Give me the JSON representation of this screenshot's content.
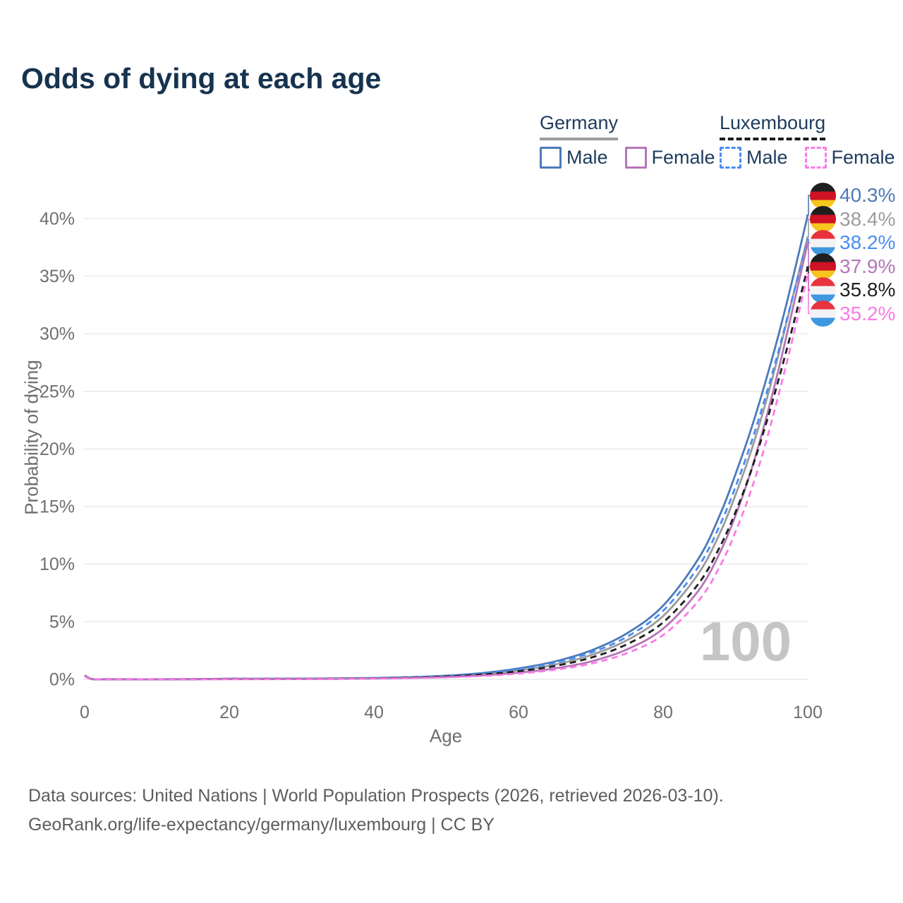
{
  "title": "Odds of dying at each age",
  "watermark": "100",
  "legend": {
    "groups": [
      {
        "name": "Germany",
        "underline_color": "#9c9c9c",
        "underline_dashed": false,
        "items": [
          {
            "label": "Male",
            "series": "germany-male"
          },
          {
            "label": "Female",
            "series": "germany-female"
          }
        ]
      },
      {
        "name": "Luxembourg",
        "underline_color": "#1c1c1c",
        "underline_dashed": true,
        "items": [
          {
            "label": "Male",
            "series": "luxembourg-male"
          },
          {
            "label": "Female",
            "series": "luxembourg-female"
          }
        ]
      }
    ]
  },
  "chart_data": {
    "type": "line",
    "title": "Odds of dying at each age",
    "xlabel": "Age",
    "ylabel": "Probability of dying",
    "xlim": [
      0,
      100
    ],
    "ylim": [
      0,
      40
    ],
    "xticks": [
      0,
      20,
      40,
      60,
      80,
      100
    ],
    "yticks": [
      0,
      5,
      10,
      15,
      20,
      25,
      30,
      35,
      40
    ],
    "ytick_suffix": "%",
    "grid": true,
    "x_ages": [
      0,
      1,
      3,
      5,
      10,
      15,
      20,
      25,
      30,
      35,
      40,
      45,
      50,
      55,
      60,
      65,
      70,
      75,
      80,
      85,
      88,
      90,
      92,
      94,
      96,
      98,
      100
    ],
    "series": [
      {
        "id": "germany-both",
        "name": "Germany (both sexes)",
        "color": "#9c9c9c",
        "dashed": false,
        "flag": "de",
        "end_label": "38.4%",
        "end_value": 38.4,
        "values": [
          0.33,
          0.025,
          0.013,
          0.01,
          0.009,
          0.018,
          0.04,
          0.04,
          0.05,
          0.07,
          0.1,
          0.16,
          0.27,
          0.46,
          0.78,
          1.28,
          2.1,
          3.4,
          5.5,
          9.3,
          12.9,
          16.0,
          19.5,
          23.6,
          28.3,
          33.4,
          38.4
        ]
      },
      {
        "id": "germany-male",
        "name": "Germany Male",
        "color": "#4c7ab8",
        "dashed": false,
        "flag": "de",
        "end_label": "40.3%",
        "end_value": 40.3,
        "values": [
          0.35,
          0.03,
          0.015,
          0.012,
          0.01,
          0.02,
          0.05,
          0.05,
          0.06,
          0.08,
          0.12,
          0.19,
          0.32,
          0.55,
          0.95,
          1.55,
          2.5,
          4.0,
          6.4,
          10.6,
          14.5,
          17.8,
          21.4,
          25.5,
          30.0,
          35.0,
          40.3
        ]
      },
      {
        "id": "luxembourg-male",
        "name": "Luxembourg Male",
        "color": "#4a8cf2",
        "dashed": true,
        "flag": "lu",
        "end_label": "38.2%",
        "end_value": 38.2,
        "values": [
          0.32,
          0.028,
          0.014,
          0.011,
          0.01,
          0.019,
          0.05,
          0.05,
          0.06,
          0.07,
          0.11,
          0.18,
          0.3,
          0.51,
          0.88,
          1.44,
          2.32,
          3.7,
          5.95,
          9.9,
          13.6,
          16.7,
          20.2,
          24.2,
          28.6,
          33.4,
          38.2
        ]
      },
      {
        "id": "germany-female",
        "name": "Germany Female",
        "color": "#b575b8",
        "dashed": false,
        "flag": "de",
        "end_label": "37.9%",
        "end_value": 37.9,
        "values": [
          0.3,
          0.02,
          0.01,
          0.008,
          0.008,
          0.015,
          0.02,
          0.025,
          0.03,
          0.05,
          0.08,
          0.13,
          0.21,
          0.35,
          0.58,
          0.95,
          1.55,
          2.6,
          4.4,
          7.8,
          11.2,
          14.2,
          17.8,
          22.1,
          27.0,
          32.4,
          37.9
        ]
      },
      {
        "id": "luxembourg-both",
        "name": "Luxembourg (both sexes)",
        "color": "#1f1f1f",
        "dashed": true,
        "flag": "lu",
        "end_label": "35.8%",
        "end_value": 35.8,
        "values": [
          0.29,
          0.022,
          0.011,
          0.009,
          0.009,
          0.016,
          0.04,
          0.04,
          0.045,
          0.06,
          0.09,
          0.15,
          0.25,
          0.42,
          0.71,
          1.16,
          1.88,
          3.05,
          4.95,
          8.4,
          11.7,
          14.5,
          17.8,
          21.7,
          26.1,
          30.8,
          35.8
        ]
      },
      {
        "id": "luxembourg-female",
        "name": "Luxembourg Female",
        "color": "#fb7ae6",
        "dashed": true,
        "flag": "lu",
        "end_label": "35.2%",
        "end_value": 35.2,
        "values": [
          0.27,
          0.018,
          0.009,
          0.007,
          0.007,
          0.012,
          0.018,
          0.02,
          0.025,
          0.04,
          0.07,
          0.11,
          0.18,
          0.3,
          0.5,
          0.83,
          1.36,
          2.28,
          3.85,
          6.9,
          10.0,
          12.8,
          16.1,
          20.1,
          24.8,
          29.8,
          35.2
        ]
      }
    ],
    "end_labels_order": [
      "germany-male",
      "germany-both",
      "luxembourg-male",
      "germany-female",
      "luxembourg-both",
      "luxembourg-female"
    ],
    "flag_colors": {
      "de": [
        "#1f1f1f",
        "#d01225",
        "#f6c51e"
      ],
      "lu": [
        "#e8333f",
        "#f3f3f5",
        "#3f97e0"
      ]
    },
    "legend_position": "top-right",
    "annotation_age": "100"
  },
  "footer": {
    "line1": "Data sources: United Nations | World Population Prospects (2026, retrieved 2026-03-10).",
    "line2": "GeoRank.org/life-expectancy/germany/luxembourg | CC BY"
  }
}
